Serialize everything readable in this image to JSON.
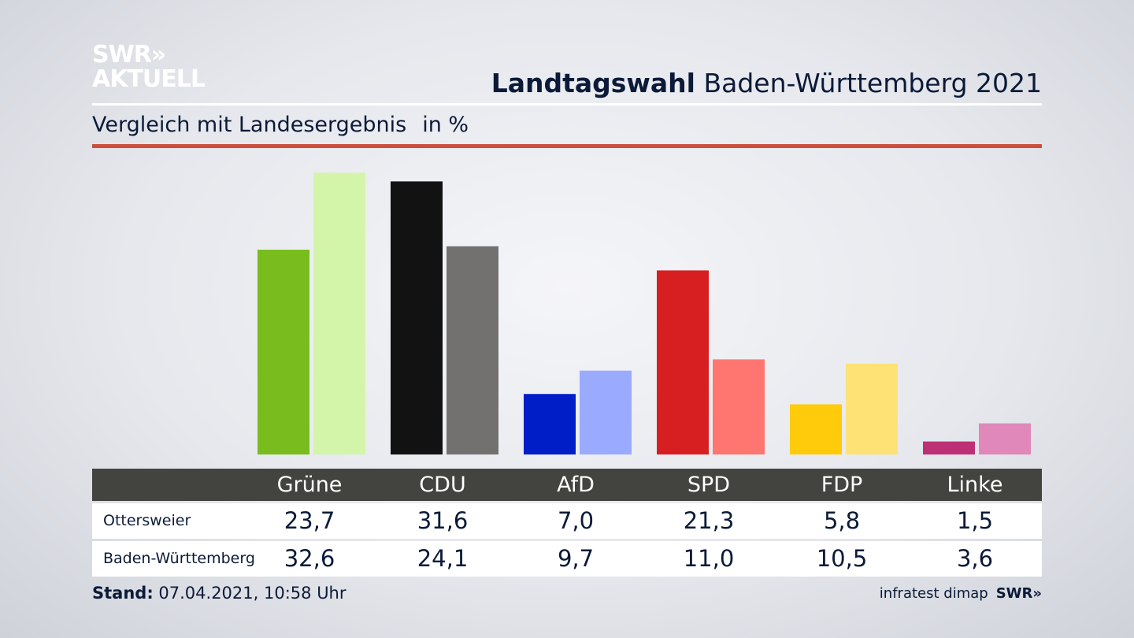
{
  "logo": {
    "line1": "SWR»",
    "line2": "AKTUELL"
  },
  "header": {
    "title_bold": "Landtagswahl",
    "title_rest": "Baden-Württemberg 2021",
    "subtitle": "Vergleich mit Landesergebnis",
    "unit": "in %"
  },
  "colors": {
    "accent_red": "#cc4e3c",
    "table_header": "#434340"
  },
  "chart_data": {
    "type": "bar",
    "title": "Landtagswahl Baden-Württemberg 2021",
    "subtitle": "Vergleich mit Landesergebnis",
    "unit": "in %",
    "categories": [
      "Grüne",
      "CDU",
      "AfD",
      "SPD",
      "FDP",
      "Linke"
    ],
    "series": [
      {
        "name": "Ottersweier",
        "values": [
          23.7,
          31.6,
          7.0,
          21.3,
          5.8,
          1.5
        ],
        "colors": [
          "#78bc1e",
          "#121212",
          "#001ec8",
          "#d71f21",
          "#ffcb0a",
          "#bd3075"
        ]
      },
      {
        "name": "Baden-Württemberg",
        "values": [
          32.6,
          24.1,
          9.7,
          11.0,
          10.5,
          3.6
        ],
        "colors": [
          "#d3f5aa",
          "#727170",
          "#9aabff",
          "#ff7670",
          "#ffe276",
          "#df88b9"
        ]
      }
    ],
    "ylim": [
      0,
      33
    ],
    "xlabel": "",
    "ylabel": ""
  },
  "table": {
    "headers": [
      "Grüne",
      "CDU",
      "AfD",
      "SPD",
      "FDP",
      "Linke"
    ],
    "rows": [
      {
        "label": "Ottersweier",
        "values": [
          "23,7",
          "31,6",
          "7,0",
          "21,3",
          "5,8",
          "1,5"
        ]
      },
      {
        "label": "Baden-Württemberg",
        "values": [
          "32,6",
          "24,1",
          "9,7",
          "11,0",
          "10,5",
          "3,6"
        ]
      }
    ]
  },
  "footer": {
    "stand_label": "Stand:",
    "stand_value": "07.04.2021, 10:58 Uhr",
    "source": "infratest dimap",
    "source_logo": "SWR»"
  }
}
